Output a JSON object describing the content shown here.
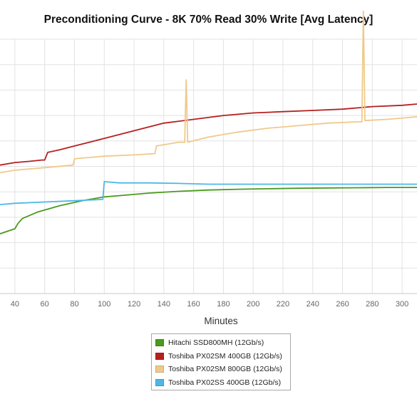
{
  "chart_data": {
    "type": "line",
    "title": "Preconditioning Curve - 8K 70% Read 30% Write [Avg Latency]",
    "xlabel": "Minutes",
    "ylabel": "",
    "xlim": [
      30,
      310
    ],
    "ylim": [
      0,
      10
    ],
    "x_ticks": [
      40,
      60,
      80,
      100,
      120,
      140,
      160,
      180,
      200,
      220,
      240,
      260,
      280,
      300
    ],
    "grid": true,
    "legend_position": "bottom-center",
    "series": [
      {
        "name": "Hitachi SSD800MH (12Gb/s)",
        "color": "#4a9a1e",
        "points": [
          [
            30,
            2.35
          ],
          [
            40,
            2.55
          ],
          [
            42,
            2.75
          ],
          [
            45,
            2.95
          ],
          [
            55,
            3.2
          ],
          [
            70,
            3.45
          ],
          [
            85,
            3.65
          ],
          [
            95,
            3.75
          ],
          [
            100,
            3.8
          ],
          [
            110,
            3.85
          ],
          [
            130,
            3.95
          ],
          [
            150,
            4.02
          ],
          [
            170,
            4.07
          ],
          [
            190,
            4.1
          ],
          [
            210,
            4.12
          ],
          [
            230,
            4.14
          ],
          [
            250,
            4.15
          ],
          [
            270,
            4.16
          ],
          [
            290,
            4.17
          ],
          [
            310,
            4.17
          ]
        ]
      },
      {
        "name": "Toshiba PX02SM 400GB (12Gb/s)",
        "color": "#b52020",
        "points": [
          [
            30,
            5.05
          ],
          [
            40,
            5.15
          ],
          [
            50,
            5.2
          ],
          [
            58,
            5.25
          ],
          [
            60,
            5.25
          ],
          [
            62,
            5.55
          ],
          [
            70,
            5.65
          ],
          [
            80,
            5.8
          ],
          [
            100,
            6.1
          ],
          [
            120,
            6.4
          ],
          [
            140,
            6.7
          ],
          [
            160,
            6.85
          ],
          [
            180,
            7.0
          ],
          [
            200,
            7.1
          ],
          [
            220,
            7.15
          ],
          [
            240,
            7.2
          ],
          [
            260,
            7.25
          ],
          [
            280,
            7.35
          ],
          [
            300,
            7.4
          ],
          [
            310,
            7.45
          ]
        ]
      },
      {
        "name": "Toshiba PX02SM 800GB (12Gb/s)",
        "color": "#f0c98a",
        "points": [
          [
            30,
            4.75
          ],
          [
            40,
            4.85
          ],
          [
            60,
            4.95
          ],
          [
            79,
            5.05
          ],
          [
            80,
            5.3
          ],
          [
            100,
            5.4
          ],
          [
            120,
            5.45
          ],
          [
            134,
            5.5
          ],
          [
            135,
            5.8
          ],
          [
            150,
            5.95
          ],
          [
            154,
            5.95
          ],
          [
            155,
            8.4
          ],
          [
            156,
            5.95
          ],
          [
            170,
            6.15
          ],
          [
            190,
            6.35
          ],
          [
            210,
            6.5
          ],
          [
            230,
            6.6
          ],
          [
            250,
            6.7
          ],
          [
            270,
            6.75
          ],
          [
            273,
            6.75
          ],
          [
            274,
            11.1
          ],
          [
            275,
            6.8
          ],
          [
            290,
            6.85
          ],
          [
            310,
            6.95
          ]
        ]
      },
      {
        "name": "Toshiba PX02SS 400GB (12Gb/s)",
        "color": "#4db8e8",
        "points": [
          [
            30,
            3.5
          ],
          [
            40,
            3.55
          ],
          [
            60,
            3.6
          ],
          [
            80,
            3.65
          ],
          [
            99,
            3.7
          ],
          [
            100,
            4.4
          ],
          [
            110,
            4.35
          ],
          [
            130,
            4.35
          ],
          [
            150,
            4.33
          ],
          [
            170,
            4.3
          ],
          [
            190,
            4.3
          ],
          [
            210,
            4.3
          ],
          [
            230,
            4.3
          ],
          [
            250,
            4.3
          ],
          [
            270,
            4.3
          ],
          [
            290,
            4.3
          ],
          [
            310,
            4.3
          ]
        ]
      }
    ]
  }
}
